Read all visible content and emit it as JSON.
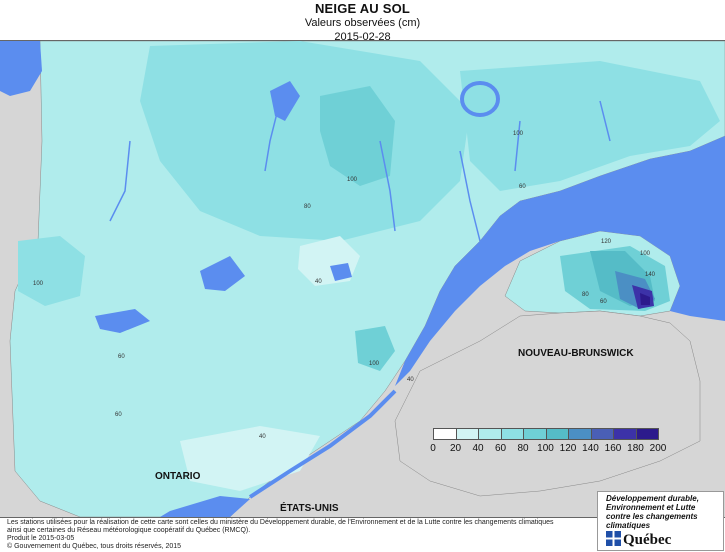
{
  "header": {
    "title": "NEIGE AU SOL",
    "subtitle": "Valeurs observées (cm)",
    "date": "2015-02-28"
  },
  "map": {
    "region_labels": {
      "ontario": "ONTARIO",
      "etats_unis": "ÉTATS-UNIS",
      "nouveau_brunswick": "NOUVEAU-BRUNSWICK"
    },
    "contour_labels": [
      "100",
      "100",
      "80",
      "60",
      "40",
      "100",
      "60",
      "60",
      "40",
      "80",
      "100",
      "120",
      "140",
      "40",
      "60",
      "100"
    ],
    "water_color": "#5b8def",
    "land_outside_color": "#d6d6d6"
  },
  "legend": {
    "ticks": [
      "0",
      "20",
      "40",
      "60",
      "80",
      "100",
      "120",
      "140",
      "160",
      "180",
      "200"
    ],
    "colors": [
      "#ffffff",
      "#d2f4f4",
      "#b0ecec",
      "#8ee0e4",
      "#6fd0d6",
      "#55bcc7",
      "#4b8fc4",
      "#4a5fb6",
      "#3c32a8",
      "#2c1a8c",
      "#1c0c5e"
    ]
  },
  "footer": {
    "line1": "Les stations utilisées pour la réalisation de cette carte sont celles du ministère du Développement durable, de l'Environnement et de la Lutte contre les changements climatiques",
    "line2": "ainsi que certaines du Réseau météorologique coopératif du Québec (RMCQ).",
    "line3": "Produit le 2015-03-05",
    "line4": "© Gouvernement du Québec, tous droits réservés, 2015"
  },
  "logo": {
    "text": "Développement durable, Environnement et Lutte contre les changements climatiques",
    "brand": "Québec",
    "icon": "fleur-de-lis-flag-icon"
  }
}
